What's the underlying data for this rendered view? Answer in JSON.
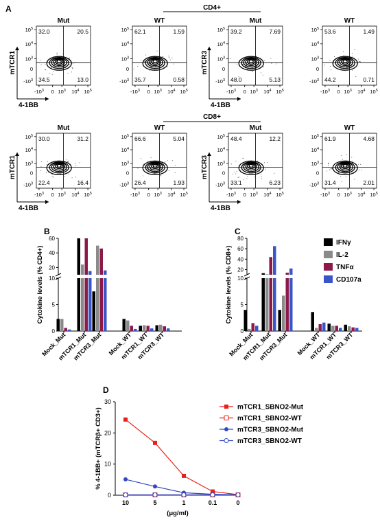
{
  "panel_letters": {
    "a": "A",
    "b": "B",
    "c": "C",
    "d": "D"
  },
  "flow": {
    "group_cd4": "CD4+",
    "group_cd8": "CD8+",
    "x_label": "4-1BB",
    "tick_neg": "-10",
    "tick_exp": "3",
    "plots": [
      {
        "title": "Mut",
        "ylabel": "mTCR1",
        "tl": "32.0",
        "tr": "20.5",
        "bl": "34.5",
        "br": "13.0",
        "axes": true
      },
      {
        "title": "WT",
        "ylabel": "",
        "tl": "62.1",
        "tr": "1.59",
        "bl": "35.7",
        "br": "0.58",
        "axes": false
      },
      {
        "title": "Mut",
        "ylabel": "mTCR3",
        "tl": "39.2",
        "tr": "7.69",
        "bl": "48.0",
        "br": "5.13",
        "axes": true
      },
      {
        "title": "WT",
        "ylabel": "",
        "tl": "53.6",
        "tr": "1.49",
        "bl": "44.2",
        "br": "0.71",
        "axes": false
      },
      {
        "title": "Mut",
        "ylabel": "mTCR1",
        "tl": "30.0",
        "tr": "31.2",
        "bl": "22.4",
        "br": "16.4",
        "axes": true
      },
      {
        "title": "WT",
        "ylabel": "",
        "tl": "66.6",
        "tr": "5.04",
        "bl": "26.4",
        "br": "1.93",
        "axes": false
      },
      {
        "title": "Mut",
        "ylabel": "mTCR3",
        "tl": "48.4",
        "tr": "12.2",
        "bl": "33.1",
        "br": "6.23",
        "axes": true
      },
      {
        "title": "WT",
        "ylabel": "",
        "tl": "61.9",
        "tr": "4.68",
        "bl": "31.4",
        "br": "2.01",
        "axes": false
      }
    ]
  },
  "chart_data": [
    {
      "type": "bar",
      "panel": "B",
      "ylabel": "Cytokine levels (% CD4+)",
      "y_axis": "broken",
      "ylim_lower": [
        0,
        10
      ],
      "ylim_upper": [
        10,
        60
      ],
      "yticks_lower": [
        0,
        5,
        10
      ],
      "yticks_upper": [
        20,
        40,
        60
      ],
      "categories": [
        "Mock_Mut",
        "mTCR1_Mut",
        "mTCR3_Mut",
        "Mock_WT",
        "mTCR1_WT",
        "mTCR3_WT"
      ],
      "series": [
        {
          "name": "IFNγ",
          "color": "#000000",
          "values": [
            2.3,
            60,
            7.5,
            2.3,
            1.0,
            1.1
          ]
        },
        {
          "name": "IL-2",
          "color": "#8a8a8a",
          "values": [
            2.3,
            24,
            50,
            2.0,
            1.1,
            1.2
          ]
        },
        {
          "name": "TNFα",
          "color": "#8b1a4a",
          "values": [
            0.6,
            60,
            46,
            1.0,
            1.0,
            0.9
          ]
        },
        {
          "name": "CD107a",
          "color": "#3a55c8",
          "values": [
            0.3,
            15,
            16,
            0.4,
            0.5,
            0.5
          ]
        }
      ]
    },
    {
      "type": "bar",
      "panel": "C",
      "ylabel": "Cytokine levels (% CD8+)",
      "y_axis": "broken",
      "ylim_lower": [
        0,
        10
      ],
      "ylim_upper": [
        10,
        80
      ],
      "yticks_lower": [
        0,
        5,
        10
      ],
      "yticks_upper": [
        20,
        40,
        60,
        80
      ],
      "categories": [
        "Mock_Mut",
        "mTCR1_Mut",
        "mTCR3_Mut",
        "Mock_WT",
        "mTCR1_WT",
        "mTCR3_WT"
      ],
      "series": [
        {
          "name": "IFNγ",
          "color": "#000000",
          "values": [
            4.0,
            13,
            4.0,
            3.6,
            1.4,
            1.2
          ]
        },
        {
          "name": "IL-2",
          "color": "#8a8a8a",
          "values": [
            0.4,
            11,
            6.7,
            0.6,
            1.0,
            0.9
          ]
        },
        {
          "name": "TNFα",
          "color": "#8b1a4a",
          "values": [
            1.5,
            44,
            14,
            1.3,
            1.0,
            0.7
          ]
        },
        {
          "name": "CD107a",
          "color": "#3a55c8",
          "values": [
            1.0,
            65,
            22,
            1.6,
            0.6,
            0.6
          ]
        }
      ]
    },
    {
      "type": "line",
      "panel": "D",
      "ylabel": "% 4-1BB+ (mTCRβ+ CD3+)",
      "xlabel": "(μg/ml)",
      "x": [
        "10",
        "5",
        "1",
        "0.1",
        "0"
      ],
      "ylim": [
        0,
        30
      ],
      "yticks": [
        0,
        10,
        20,
        30
      ],
      "series": [
        {
          "name": "mTCR1_SBNO2-Mut",
          "color": "#e8201c",
          "marker": "filled-square",
          "values": [
            24.3,
            16.8,
            6.2,
            1.2,
            0.2
          ]
        },
        {
          "name": "mTCR1_SBNO2-WT",
          "color": "#e8201c",
          "marker": "open-square",
          "values": [
            0.1,
            0.1,
            0.1,
            0.1,
            0.1
          ]
        },
        {
          "name": "mTCR3_SBNO2-Mut",
          "color": "#3247c0",
          "marker": "filled-circle",
          "values": [
            5.1,
            2.8,
            0.8,
            0.3,
            0.1
          ]
        },
        {
          "name": "mTCR3_SBNO2-WT",
          "color": "#3247c0",
          "marker": "open-circle",
          "values": [
            0.1,
            0.1,
            0.1,
            0.1,
            0.1
          ]
        }
      ]
    }
  ]
}
